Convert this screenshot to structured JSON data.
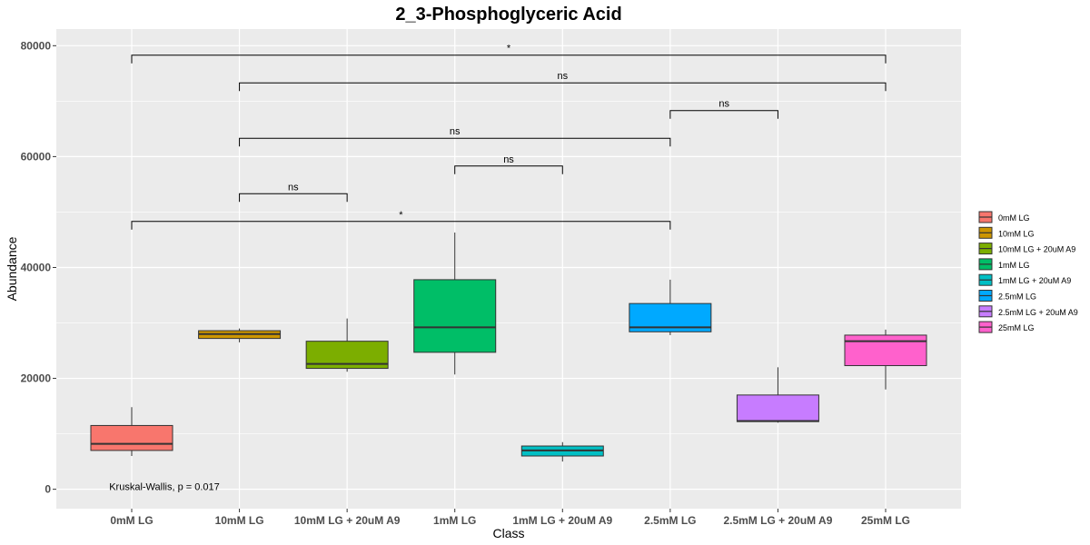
{
  "chart_data": {
    "type": "box",
    "title": "2_3-Phosphoglyceric Acid",
    "xlabel": "Class",
    "ylabel": "Abundance",
    "ylim": [
      -3500,
      83000
    ],
    "yticks": [
      0,
      20000,
      40000,
      60000,
      80000
    ],
    "grid": true,
    "legend_position": "right",
    "categories": [
      "0mM LG",
      "10mM LG",
      "10mM LG + 20uM A9",
      "1mM LG",
      "1mM LG + 20uM A9",
      "2.5mM LG",
      "2.5mM LG + 20uM A9",
      "25mM LG"
    ],
    "boxes": [
      {
        "category": "0mM LG",
        "color": "#F8766D",
        "whisker_low": 6000,
        "q1": 7000,
        "median": 8200,
        "q3": 11500,
        "whisker_high": 14800
      },
      {
        "category": "10mM LG",
        "color": "#CD9600",
        "whisker_low": 26500,
        "q1": 27200,
        "median": 28000,
        "q3": 28600,
        "whisker_high": 29000
      },
      {
        "category": "10mM LG + 20uM A9",
        "color": "#7CAE00",
        "whisker_low": 21200,
        "q1": 21800,
        "median": 22600,
        "q3": 26700,
        "whisker_high": 30800
      },
      {
        "category": "1mM LG",
        "color": "#00BE67",
        "whisker_low": 20700,
        "q1": 24700,
        "median": 29200,
        "q3": 37800,
        "whisker_high": 46300
      },
      {
        "category": "1mM LG + 20uM A9",
        "color": "#00BFC4",
        "whisker_low": 5000,
        "q1": 6000,
        "median": 7000,
        "q3": 7800,
        "whisker_high": 8500
      },
      {
        "category": "2.5mM LG",
        "color": "#00A9FF",
        "whisker_low": 27800,
        "q1": 28400,
        "median": 29200,
        "q3": 33500,
        "whisker_high": 37800
      },
      {
        "category": "2.5mM LG + 20uM A9",
        "color": "#C77CFF",
        "whisker_low": 12000,
        "q1": 12200,
        "median": 12300,
        "q3": 17000,
        "whisker_high": 22000
      },
      {
        "category": "25mM LG",
        "color": "#FF61CC",
        "whisker_low": 18000,
        "q1": 22300,
        "median": 26700,
        "q3": 27800,
        "whisker_high": 28800
      }
    ],
    "comparisons": [
      {
        "from": "0mM LG",
        "to": "25mM LG",
        "y": 78300,
        "label": "*"
      },
      {
        "from": "10mM LG",
        "to": "25mM LG",
        "y": 73300,
        "label": "ns"
      },
      {
        "from": "2.5mM LG",
        "to": "2.5mM LG + 20uM A9",
        "y": 68300,
        "label": "ns"
      },
      {
        "from": "10mM LG",
        "to": "2.5mM LG",
        "y": 63300,
        "label": "ns"
      },
      {
        "from": "1mM LG",
        "to": "1mM LG + 20uM A9",
        "y": 58300,
        "label": "ns"
      },
      {
        "from": "10mM LG",
        "to": "10mM LG + 20uM A9",
        "y": 53300,
        "label": "ns"
      },
      {
        "from": "0mM LG",
        "to": "2.5mM LG",
        "y": 48300,
        "label": "*"
      }
    ],
    "annotation": {
      "text": "Kruskal-Wallis, p = 0.017",
      "x_category": "0mM LG",
      "y": 500
    },
    "legend": [
      "0mM LG",
      "10mM LG",
      "10mM LG + 20uM A9",
      "1mM LG",
      "1mM LG + 20uM A9",
      "2.5mM LG",
      "2.5mM LG + 20uM A9",
      "25mM LG"
    ],
    "colors": {
      "panel": "#EBEBEB",
      "grid": "#FFFFFF"
    }
  }
}
